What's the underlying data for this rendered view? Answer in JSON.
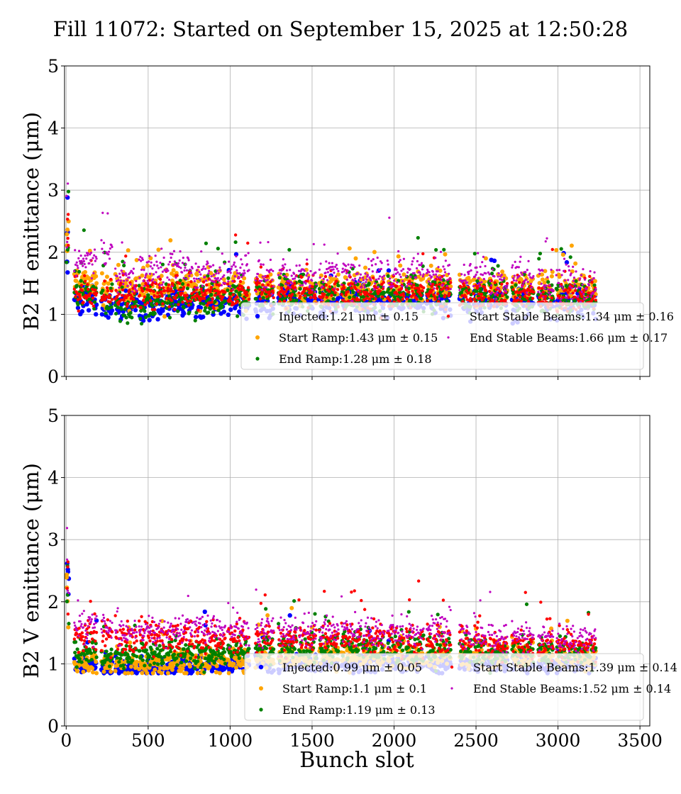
{
  "figure": {
    "title": "Fill 11072: Started on September 15, 2025 at 12:50:28",
    "xlabel": "Bunch slot"
  },
  "chart_data": [
    {
      "type": "scatter",
      "ylabel": "B2 H emittance (μm)",
      "xlim": [
        -10,
        3560
      ],
      "ylim": [
        0,
        5
      ],
      "xticks": [
        0,
        500,
        1000,
        1500,
        2000,
        2500,
        3000,
        3500
      ],
      "yticks": [
        0,
        1,
        2,
        3,
        4,
        5
      ],
      "grid": true,
      "legend_position": "lower-right",
      "legend_columns": 2,
      "series": [
        {
          "name": "Injected",
          "label": "Injected:1.21 μm ± 0.15",
          "mean": 1.21,
          "std": 0.15,
          "color": "#0000ff"
        },
        {
          "name": "Start Ramp",
          "label": "Start Ramp:1.43 μm ± 0.15",
          "mean": 1.43,
          "std": 0.15,
          "color": "#ffa500"
        },
        {
          "name": "End Ramp",
          "label": "End Ramp:1.28 μm ± 0.18",
          "mean": 1.28,
          "std": 0.18,
          "color": "#008000"
        },
        {
          "name": "Start Stable Beams",
          "label": "Start Stable Beams:1.34 μm ± 0.16",
          "mean": 1.34,
          "std": 0.16,
          "color": "#ff0000"
        },
        {
          "name": "End Stable Beams",
          "label": "End Stable Beams:1.66 μm ± 0.17",
          "mean": 1.66,
          "std": 0.17,
          "color": "#bf00bf"
        }
      ],
      "trains_x": [
        [
          50,
          185
        ],
        [
          215,
          280
        ],
        [
          300,
          430
        ],
        [
          445,
          600
        ],
        [
          610,
          770
        ],
        [
          780,
          970
        ],
        [
          985,
          1115
        ],
        [
          1155,
          1265
        ],
        [
          1295,
          1405
        ],
        [
          1420,
          1525
        ],
        [
          1545,
          1660
        ],
        [
          1680,
          1800
        ],
        [
          1810,
          1940
        ],
        [
          1960,
          2060
        ],
        [
          2075,
          2180
        ],
        [
          2200,
          2345
        ],
        [
          2400,
          2470
        ],
        [
          2485,
          2560
        ],
        [
          2575,
          2690
        ],
        [
          2720,
          2850
        ],
        [
          2880,
          2970
        ],
        [
          2990,
          3110
        ],
        [
          3120,
          3230
        ]
      ],
      "trains_mean": [
        [
          1.26,
          1.55,
          1.38,
          1.35,
          1.85
        ],
        [
          1.13,
          1.42,
          1.18,
          1.3,
          1.95
        ],
        [
          1.15,
          1.42,
          1.17,
          1.32,
          1.6
        ],
        [
          1.16,
          1.42,
          1.2,
          1.34,
          1.72
        ],
        [
          1.18,
          1.45,
          1.25,
          1.35,
          1.78
        ],
        [
          1.18,
          1.42,
          1.23,
          1.33,
          1.62
        ],
        [
          1.2,
          1.42,
          1.3,
          1.36,
          1.68
        ],
        [
          1.2,
          1.43,
          1.33,
          1.37,
          1.65
        ],
        [
          1.21,
          1.43,
          1.31,
          1.34,
          1.62
        ],
        [
          1.22,
          1.43,
          1.32,
          1.35,
          1.6
        ],
        [
          1.22,
          1.44,
          1.32,
          1.37,
          1.65
        ],
        [
          1.22,
          1.43,
          1.3,
          1.35,
          1.63
        ],
        [
          1.21,
          1.43,
          1.3,
          1.34,
          1.62
        ],
        [
          1.22,
          1.43,
          1.3,
          1.34,
          1.63
        ],
        [
          1.22,
          1.44,
          1.32,
          1.35,
          1.65
        ],
        [
          1.22,
          1.44,
          1.32,
          1.35,
          1.62
        ],
        [
          1.22,
          1.44,
          1.3,
          1.33,
          1.62
        ],
        [
          1.22,
          1.44,
          1.3,
          1.33,
          1.68
        ],
        [
          1.22,
          1.42,
          1.28,
          1.3,
          1.5
        ],
        [
          1.22,
          1.42,
          1.28,
          1.3,
          1.6
        ],
        [
          1.21,
          1.42,
          1.28,
          1.26,
          1.48
        ],
        [
          1.21,
          1.42,
          1.28,
          1.26,
          1.5
        ],
        [
          1.21,
          1.42,
          1.28,
          1.26,
          1.45
        ]
      ]
    },
    {
      "type": "scatter",
      "ylabel": "B2 V emittance (μm)",
      "xlim": [
        -10,
        3560
      ],
      "ylim": [
        0,
        5
      ],
      "xticks": [
        0,
        500,
        1000,
        1500,
        2000,
        2500,
        3000,
        3500
      ],
      "yticks": [
        0,
        1,
        2,
        3,
        4,
        5
      ],
      "grid": true,
      "legend_position": "lower-right",
      "legend_columns": 2,
      "series": [
        {
          "name": "Injected",
          "label": "Injected:0.99 μm ± 0.05",
          "mean": 0.99,
          "std": 0.05,
          "color": "#0000ff"
        },
        {
          "name": "Start Ramp",
          "label": "Start Ramp:1.1 μm ± 0.1",
          "mean": 1.1,
          "std": 0.1,
          "color": "#ffa500"
        },
        {
          "name": "End Ramp",
          "label": "End Ramp:1.19 μm ± 0.13",
          "mean": 1.19,
          "std": 0.13,
          "color": "#008000"
        },
        {
          "name": "Start Stable Beams",
          "label": "Start Stable Beams:1.39 μm ± 0.14",
          "mean": 1.39,
          "std": 0.14,
          "color": "#ff0000"
        },
        {
          "name": "End Stable Beams",
          "label": "End Stable Beams:1.52 μm ± 0.14",
          "mean": 1.52,
          "std": 0.14,
          "color": "#bf00bf"
        }
      ],
      "trains_x": [
        [
          50,
          185
        ],
        [
          215,
          280
        ],
        [
          300,
          430
        ],
        [
          445,
          600
        ],
        [
          610,
          770
        ],
        [
          780,
          970
        ],
        [
          985,
          1115
        ],
        [
          1155,
          1265
        ],
        [
          1295,
          1405
        ],
        [
          1420,
          1525
        ],
        [
          1545,
          1660
        ],
        [
          1680,
          1800
        ],
        [
          1810,
          1940
        ],
        [
          1960,
          2060
        ],
        [
          2075,
          2180
        ],
        [
          2200,
          2345
        ],
        [
          2400,
          2470
        ],
        [
          2485,
          2560
        ],
        [
          2575,
          2690
        ],
        [
          2720,
          2850
        ],
        [
          2880,
          2970
        ],
        [
          2990,
          3110
        ],
        [
          3120,
          3230
        ]
      ],
      "trains_mean": [
        [
          0.99,
          1.02,
          1.2,
          1.45,
          1.6
        ],
        [
          0.97,
          1.0,
          1.15,
          1.45,
          1.6
        ],
        [
          0.97,
          1.0,
          1.15,
          1.4,
          1.5
        ],
        [
          0.96,
          1.0,
          1.18,
          1.43,
          1.55
        ],
        [
          0.97,
          1.02,
          1.2,
          1.42,
          1.55
        ],
        [
          0.98,
          1.04,
          1.15,
          1.4,
          1.6
        ],
        [
          0.99,
          1.06,
          1.25,
          1.42,
          1.55
        ],
        [
          1.0,
          1.08,
          1.25,
          1.42,
          1.5
        ],
        [
          1.0,
          1.1,
          1.24,
          1.4,
          1.5
        ],
        [
          1.0,
          1.1,
          1.24,
          1.4,
          1.5
        ],
        [
          1.0,
          1.12,
          1.26,
          1.42,
          1.55
        ],
        [
          1.0,
          1.12,
          1.26,
          1.4,
          1.55
        ],
        [
          1.0,
          1.12,
          1.25,
          1.4,
          1.5
        ],
        [
          1.0,
          1.12,
          1.24,
          1.4,
          1.5
        ],
        [
          1.0,
          1.12,
          1.24,
          1.4,
          1.5
        ],
        [
          1.0,
          1.12,
          1.24,
          1.4,
          1.55
        ],
        [
          1.0,
          1.12,
          1.2,
          1.35,
          1.45
        ],
        [
          1.0,
          1.12,
          1.2,
          1.35,
          1.45
        ],
        [
          1.0,
          1.12,
          1.2,
          1.33,
          1.4
        ],
        [
          1.0,
          1.12,
          1.2,
          1.33,
          1.45
        ],
        [
          1.0,
          1.12,
          1.18,
          1.3,
          1.4
        ],
        [
          1.0,
          1.12,
          1.18,
          1.3,
          1.4
        ],
        [
          1.0,
          1.12,
          1.18,
          1.3,
          1.4
        ]
      ]
    }
  ]
}
